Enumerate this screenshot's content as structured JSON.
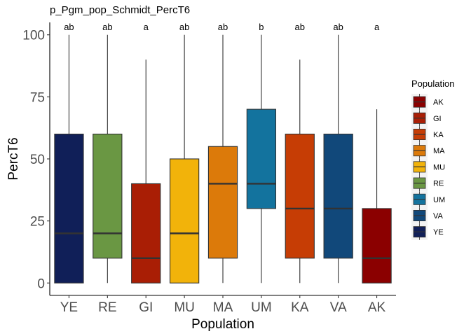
{
  "chart_data": {
    "type": "box",
    "title": "p_Pgm_pop_Schmidt_PercT6",
    "xlabel": "Population",
    "ylabel": "PercT6",
    "ylim": [
      -5,
      105
    ],
    "yticks": [
      0,
      25,
      50,
      75,
      100
    ],
    "grid": false,
    "legend_position": "right",
    "legend_title": "Population",
    "legend_items": [
      {
        "label": "AK",
        "color": "#8B0000"
      },
      {
        "label": "GI",
        "color": "#A91E05"
      },
      {
        "label": "KA",
        "color": "#C63D05"
      },
      {
        "label": "MA",
        "color": "#DC7A0A"
      },
      {
        "label": "MU",
        "color": "#F2B30A"
      },
      {
        "label": "RE",
        "color": "#6A9743"
      },
      {
        "label": "UM",
        "color": "#13739E"
      },
      {
        "label": "VA",
        "color": "#11487A"
      },
      {
        "label": "YE",
        "color": "#101F58"
      }
    ],
    "categories": [
      "YE",
      "RE",
      "GI",
      "MU",
      "MA",
      "UM",
      "KA",
      "VA",
      "AK"
    ],
    "boxes": [
      {
        "category": "YE",
        "min": 0,
        "q1": 0,
        "median": 20,
        "q3": 60,
        "max": 100,
        "sig": "ab",
        "color": "#101F58"
      },
      {
        "category": "RE",
        "min": 0,
        "q1": 10,
        "median": 20,
        "q3": 60,
        "max": 100,
        "sig": "ab",
        "color": "#6A9743"
      },
      {
        "category": "GI",
        "min": 0,
        "q1": 0,
        "median": 10,
        "q3": 40,
        "max": 90,
        "sig": "a",
        "color": "#A91E05"
      },
      {
        "category": "MU",
        "min": 0,
        "q1": 0,
        "median": 20,
        "q3": 50,
        "max": 100,
        "sig": "ab",
        "color": "#F2B30A"
      },
      {
        "category": "MA",
        "min": 0,
        "q1": 10,
        "median": 40,
        "q3": 55,
        "max": 100,
        "sig": "ab",
        "color": "#DC7A0A"
      },
      {
        "category": "UM",
        "min": 0,
        "q1": 30,
        "median": 40,
        "q3": 70,
        "max": 100,
        "sig": "b",
        "color": "#13739E"
      },
      {
        "category": "KA",
        "min": 0,
        "q1": 10,
        "median": 30,
        "q3": 60,
        "max": 90,
        "sig": "ab",
        "color": "#C63D05"
      },
      {
        "category": "VA",
        "min": 0,
        "q1": 10,
        "median": 30,
        "q3": 60,
        "max": 100,
        "sig": "ab",
        "color": "#11487A"
      },
      {
        "category": "AK",
        "min": 0,
        "q1": 0,
        "median": 10,
        "q3": 30,
        "max": 70,
        "sig": "a",
        "color": "#8B0000"
      }
    ]
  }
}
